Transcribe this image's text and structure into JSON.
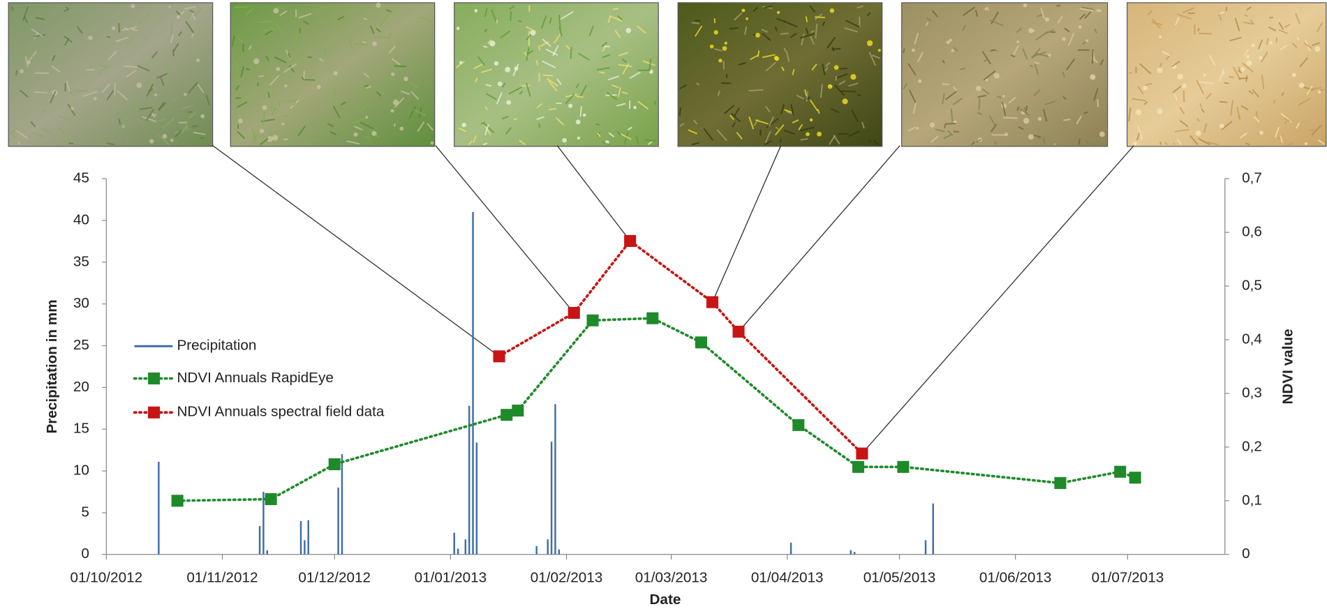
{
  "chart_data": {
    "type": "combo",
    "x_label": "Date",
    "y_label": "Precipitation in mm",
    "y2_label": "NDVI value",
    "xlim": [
      "2012-10-01",
      "2013-07-27"
    ],
    "xticks": [
      {
        "value": "2012-10-01",
        "label": "01/10/2012"
      },
      {
        "value": "2012-11-01",
        "label": "01/11/2012"
      },
      {
        "value": "2012-12-01",
        "label": "01/12/2012"
      },
      {
        "value": "2013-01-01",
        "label": "01/01/2013"
      },
      {
        "value": "2013-02-01",
        "label": "01/02/2013"
      },
      {
        "value": "2013-03-01",
        "label": "01/03/2013"
      },
      {
        "value": "2013-04-01",
        "label": "01/04/2013"
      },
      {
        "value": "2013-05-01",
        "label": "01/05/2013"
      },
      {
        "value": "2013-06-01",
        "label": "01/06/2013"
      },
      {
        "value": "2013-07-01",
        "label": "01/07/2013"
      }
    ],
    "ylim": [
      0,
      45
    ],
    "yticks": [
      0,
      5,
      10,
      15,
      20,
      25,
      30,
      35,
      40,
      45
    ],
    "y2lim": [
      0,
      0.7
    ],
    "y2ticks": [
      0,
      {
        "value": 0.1,
        "label": "0,1"
      },
      {
        "value": 0.2,
        "label": "0,2"
      },
      {
        "value": 0.3,
        "label": "0,3"
      },
      {
        "value": 0.4,
        "label": "0,4"
      },
      {
        "value": 0.5,
        "label": "0,5"
      },
      {
        "value": 0.6,
        "label": "0,6"
      },
      {
        "value": 0.7,
        "label": "0,7"
      }
    ],
    "series": [
      {
        "name": "Precipitation",
        "type": "bar",
        "color": "#3d6da8",
        "x": [
          "2012-10-15",
          "2012-11-11",
          "2012-11-12",
          "2012-11-13",
          "2012-11-22",
          "2012-11-23",
          "2012-11-24",
          "2012-12-02",
          "2012-12-03",
          "2013-01-02",
          "2013-01-03",
          "2013-01-05",
          "2013-01-06",
          "2013-01-07",
          "2013-01-08",
          "2013-01-24",
          "2013-01-27",
          "2013-01-28",
          "2013-01-29",
          "2013-01-30",
          "2013-04-02",
          "2013-04-18",
          "2013-04-19",
          "2013-05-08",
          "2013-05-10"
        ],
        "values": [
          11.1,
          3.4,
          7.5,
          0.5,
          4,
          1.7,
          4.1,
          8,
          12,
          2.6,
          0.7,
          1.8,
          17.8,
          41,
          13.4,
          1,
          1.8,
          13.5,
          18,
          0.6,
          1.4,
          0.5,
          0.3,
          1.7,
          6.1
        ]
      },
      {
        "name": "NDVI Annuals RapidEye",
        "type": "line",
        "axis": "y2",
        "color": "#1f8a2a",
        "x": [
          "2012-10-20",
          "2012-11-14",
          "2012-12-01",
          "2013-01-16",
          "2013-01-19",
          "2013-02-08",
          "2013-02-24",
          "2013-03-09",
          "2013-04-04",
          "2013-04-20",
          "2013-05-02",
          "2013-06-13",
          "2013-06-29",
          "2013-07-03"
        ],
        "values": [
          0.1,
          0.103,
          0.168,
          0.26,
          0.268,
          0.436,
          0.44,
          0.395,
          0.241,
          0.163,
          0.163,
          0.133,
          0.154,
          0.143
        ]
      },
      {
        "name": "NDVI Annuals spectral field data",
        "type": "line",
        "axis": "y2",
        "color": "#c81414",
        "x": [
          "2013-01-14",
          "2013-02-03",
          "2013-02-18",
          "2013-03-12",
          "2013-03-19",
          "2013-04-21"
        ],
        "values": [
          0.369,
          0.45,
          0.584,
          0.47,
          0.415,
          0.188
        ]
      }
    ]
  }
}
